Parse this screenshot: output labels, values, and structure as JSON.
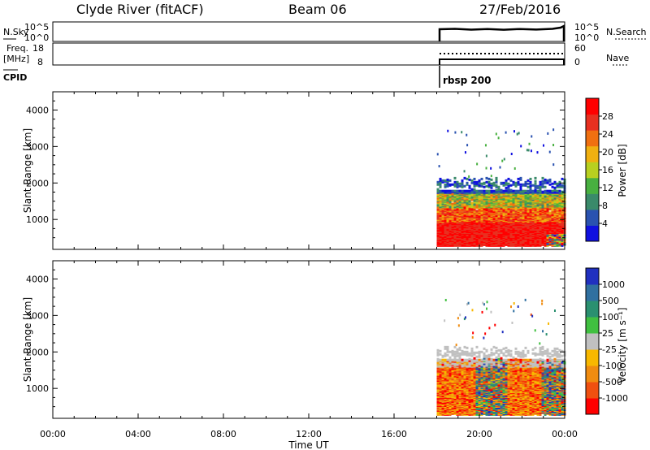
{
  "header": {
    "station": "Clyde River (fitACF)",
    "beam": "Beam 06",
    "date": "27/Feb/2016"
  },
  "params": {
    "nsky_label": "N.Sky",
    "nsky_ticks": [
      "10^5",
      "10^0"
    ],
    "nsearch_label": "N.Search",
    "nsearch_ticks": [
      "10^5",
      "10^0"
    ],
    "freq_label": "Freq.",
    "freq_unit": "[MHz]",
    "freq_ticks": [
      "18",
      "8"
    ],
    "nave_label": "Nave",
    "nave_ticks": [
      "60",
      "0"
    ],
    "cpid_label": "CPID",
    "cpid_value": "rbsp 200"
  },
  "colors": {
    "power_scale": [
      "#1010e0",
      "#2a52b0",
      "#3a8a6a",
      "#48b040",
      "#b8d020",
      "#f0b010",
      "#f07010",
      "#e83020",
      "#ff0000"
    ],
    "velocity_scale": [
      "#ff0000",
      "#f05010",
      "#f08c10",
      "#f8b800",
      "#c0c0c0",
      "#40c040",
      "#2a9070",
      "#3070a0",
      "#2030c0"
    ]
  },
  "chart_data": [
    {
      "type": "heatmap",
      "name": "power",
      "xlabel": "Time UT",
      "ylabel": "Slant Range [km]",
      "x_ticks": [
        "00:00",
        "04:00",
        "08:00",
        "12:00",
        "16:00",
        "20:00",
        "00:00"
      ],
      "x_range_hours": [
        0,
        24
      ],
      "ylim": [
        180,
        4500
      ],
      "y_ticks": [
        1000,
        2000,
        3000,
        4000
      ],
      "data_start_hour": 18.0,
      "colorbar": {
        "label": "Power [dB]",
        "ticks": [
          4,
          8,
          12,
          16,
          20,
          24,
          28
        ],
        "range": [
          0,
          32
        ]
      }
    },
    {
      "type": "heatmap",
      "name": "velocity",
      "xlabel": "Time UT",
      "ylabel": "Slant Range [km]",
      "x_ticks": [
        "00:00",
        "04:00",
        "08:00",
        "12:00",
        "16:00",
        "20:00",
        "00:00"
      ],
      "x_range_hours": [
        0,
        24
      ],
      "ylim": [
        180,
        4500
      ],
      "y_ticks": [
        1000,
        2000,
        3000,
        4000
      ],
      "data_start_hour": 18.0,
      "colorbar": {
        "label": "Velocity [m s⁻¹]",
        "ticks": [
          1000,
          500,
          100,
          25,
          -25,
          -100,
          -500,
          -1000
        ]
      }
    }
  ]
}
